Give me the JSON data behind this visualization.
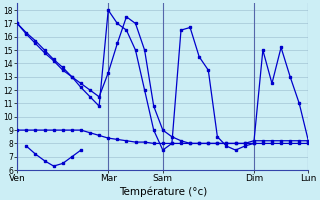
{
  "xlabel": "Température (°c)",
  "background_color": "#cceef5",
  "line_color": "#0000cc",
  "grid_color": "#99bbcc",
  "xlim": [
    0,
    96
  ],
  "ylim": [
    6,
    18.5
  ],
  "yticks": [
    6,
    7,
    8,
    9,
    10,
    11,
    12,
    13,
    14,
    15,
    16,
    17,
    18
  ],
  "day_labels": [
    "Ven",
    "Mar",
    "Sam",
    "Dim",
    "Lun"
  ],
  "day_positions": [
    0,
    30,
    48,
    78,
    96
  ],
  "line1_x": [
    0,
    3,
    6,
    9,
    12,
    15,
    18,
    21,
    24,
    27,
    30,
    33,
    36,
    39,
    42,
    45,
    48,
    51,
    54,
    57,
    60,
    63,
    66,
    69,
    72,
    75,
    78,
    81,
    84,
    87,
    90,
    93,
    96
  ],
  "line1_y": [
    17.0,
    16.3,
    15.7,
    15.0,
    14.3,
    13.7,
    13.0,
    12.5,
    12.0,
    11.5,
    13.3,
    15.5,
    17.5,
    17.0,
    15.0,
    10.8,
    9.0,
    8.5,
    8.2,
    8.0,
    8.0,
    8.0,
    8.0,
    8.0,
    8.0,
    8.0,
    8.2,
    8.2,
    8.2,
    8.2,
    8.2,
    8.2,
    8.2
  ],
  "line2_x": [
    0,
    3,
    6,
    9,
    12,
    15,
    18,
    21,
    24,
    27,
    30,
    33,
    36,
    39,
    42,
    45,
    48,
    51,
    54,
    57,
    60,
    63,
    66,
    69,
    72,
    75,
    78,
    81,
    84,
    87,
    90,
    93,
    96
  ],
  "line2_y": [
    9.0,
    9.0,
    9.0,
    9.0,
    9.0,
    9.0,
    9.0,
    9.0,
    8.8,
    8.6,
    8.4,
    8.3,
    8.2,
    8.1,
    8.1,
    8.0,
    8.0,
    8.0,
    8.0,
    8.0,
    8.0,
    8.0,
    8.0,
    8.0,
    8.0,
    8.0,
    8.0,
    8.0,
    8.0,
    8.0,
    8.0,
    8.0,
    8.0
  ],
  "line3_x": [
    0,
    3,
    6,
    9,
    12,
    15,
    18,
    21,
    24,
    27,
    30,
    33,
    36,
    39,
    42,
    45,
    48,
    51,
    54,
    57,
    60,
    63,
    66,
    69,
    72,
    75,
    78,
    81,
    84,
    87,
    90,
    93,
    96
  ],
  "line3_y": [
    17.0,
    16.2,
    15.5,
    14.8,
    14.2,
    13.5,
    13.0,
    12.2,
    11.5,
    10.8,
    18.0,
    17.0,
    16.5,
    15.0,
    12.0,
    9.0,
    7.5,
    8.0,
    16.5,
    16.7,
    14.5,
    13.5,
    8.5,
    7.8,
    7.5,
    7.8,
    8.0,
    15.0,
    12.5,
    15.2,
    13.0,
    11.0,
    8.2
  ],
  "line4_x": [
    3,
    6,
    9,
    12,
    15,
    18,
    21
  ],
  "line4_y": [
    7.8,
    7.2,
    6.7,
    6.3,
    6.5,
    7.0,
    7.5
  ]
}
